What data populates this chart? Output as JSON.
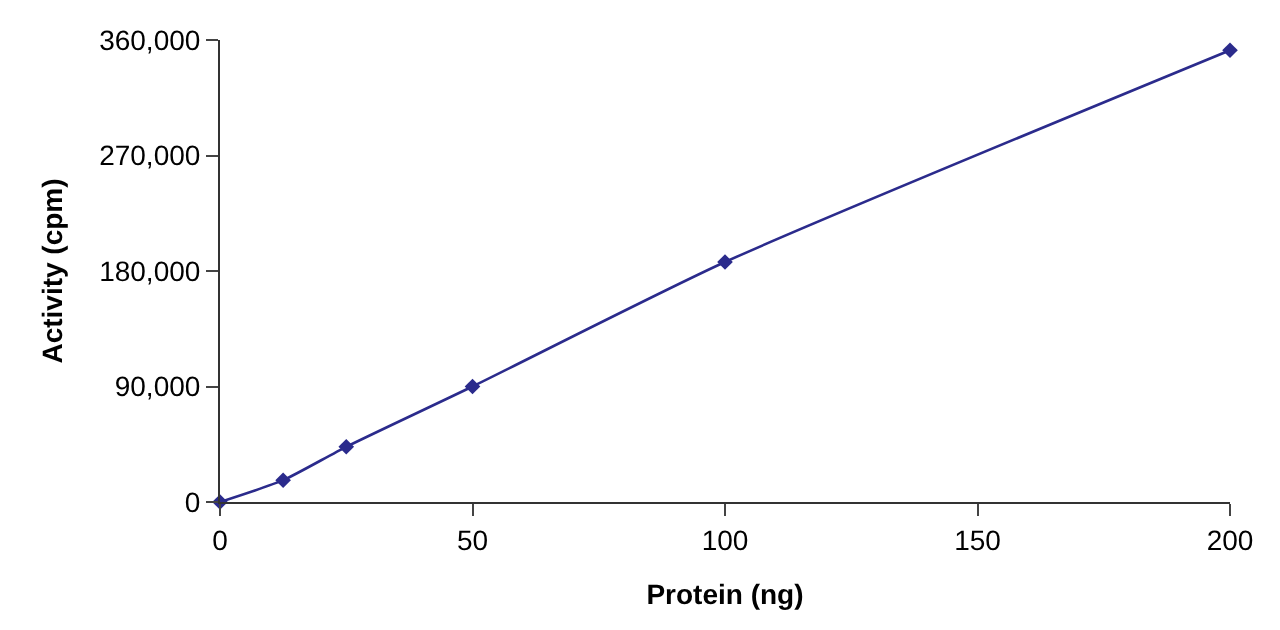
{
  "chart_data": {
    "type": "line",
    "xlabel": "Protein (ng)",
    "ylabel": "Activity (cpm)",
    "x": [
      0,
      12.5,
      25,
      50,
      100,
      200
    ],
    "series": [
      {
        "color": "#2b2b8c",
        "values": [
          0,
          17000,
          43000,
          90000,
          187000,
          352000
        ]
      }
    ],
    "xlim": [
      0,
      200
    ],
    "xticks": [
      0,
      50,
      100,
      150,
      200
    ],
    "ylim": [
      0,
      360000
    ],
    "yticks": [
      {
        "value": 0,
        "label": "0"
      },
      {
        "value": 90000,
        "label": "90,000"
      },
      {
        "value": 180000,
        "label": "180,000"
      },
      {
        "value": 270000,
        "label": "270,000"
      },
      {
        "value": 360000,
        "label": "360,000"
      }
    ],
    "marker": "diamond",
    "line_style": "solid",
    "grid": false,
    "legend": false
  }
}
